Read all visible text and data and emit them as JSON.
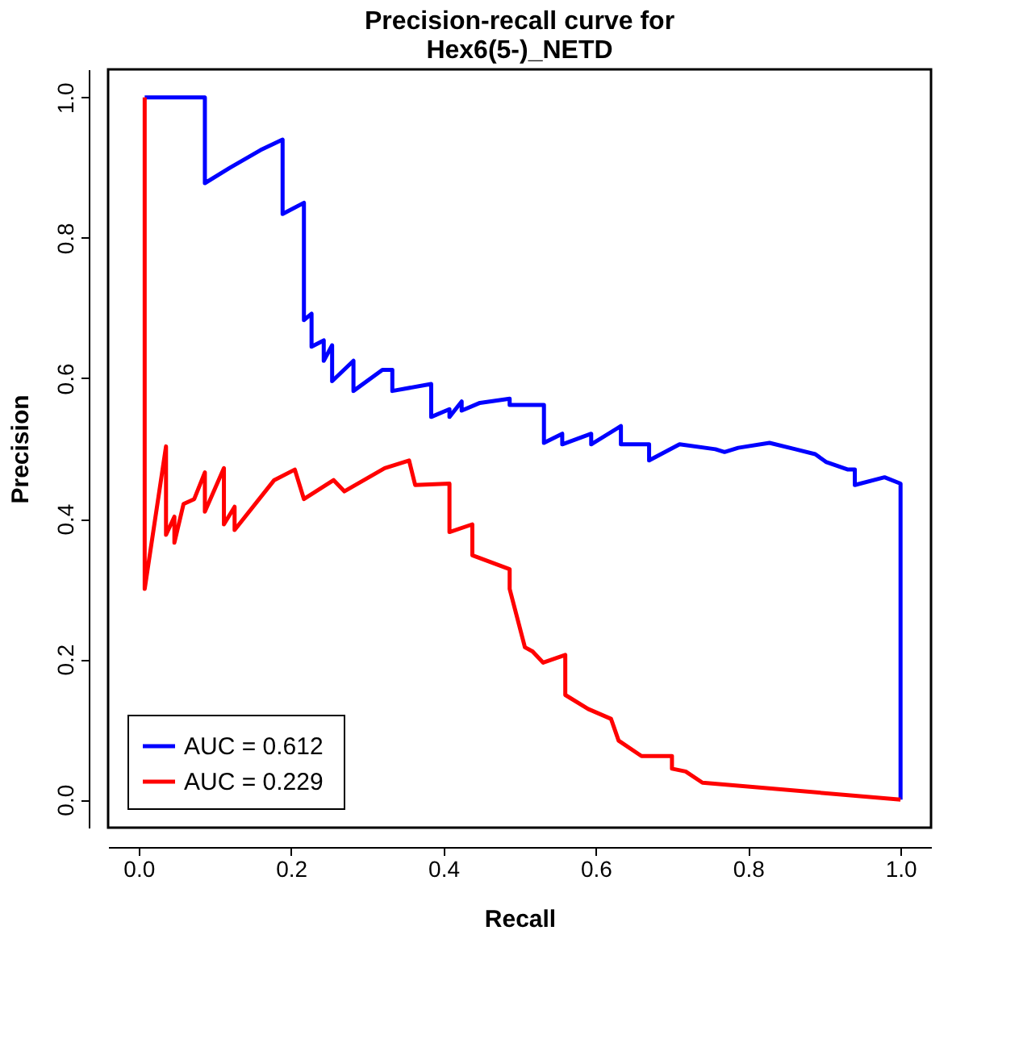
{
  "chart_data": {
    "type": "line",
    "title": "Precision-recall curve for\nHex6(5-)_NETD",
    "xlabel": "Recall",
    "ylabel": "Precision",
    "series": [
      {
        "name": "AUC =  0.612",
        "color": "#0000ff",
        "x": [
          0.008,
          0.087,
          0.087,
          0.12,
          0.16,
          0.189,
          0.189,
          0.217,
          0.217,
          0.227,
          0.227,
          0.243,
          0.243,
          0.254,
          0.254,
          0.282,
          0.282,
          0.32,
          0.333,
          0.333,
          0.384,
          0.384,
          0.408,
          0.408,
          0.424,
          0.424,
          0.448,
          0.487,
          0.487,
          0.507,
          0.532,
          0.532,
          0.556,
          0.556,
          0.594,
          0.594,
          0.633,
          0.633,
          0.67,
          0.67,
          0.682,
          0.71,
          0.757,
          0.769,
          0.787,
          0.828,
          0.862,
          0.888,
          0.902,
          0.931,
          0.94,
          0.94,
          0.979,
          1.0,
          1.0
        ],
        "values": [
          1.0,
          1.0,
          0.878,
          0.9,
          0.925,
          0.94,
          0.834,
          0.85,
          0.683,
          0.692,
          0.645,
          0.654,
          0.625,
          0.647,
          0.596,
          0.625,
          0.582,
          0.612,
          0.612,
          0.582,
          0.592,
          0.545,
          0.556,
          0.545,
          0.567,
          0.554,
          0.565,
          0.571,
          0.562,
          0.562,
          0.562,
          0.508,
          0.521,
          0.506,
          0.521,
          0.506,
          0.532,
          0.506,
          0.506,
          0.483,
          0.49,
          0.506,
          0.499,
          0.495,
          0.501,
          0.508,
          0.499,
          0.492,
          0.481,
          0.47,
          0.47,
          0.448,
          0.459,
          0.45,
          0.0
        ]
      },
      {
        "name": "AUC =  0.229",
        "color": "#ff0000",
        "x": [
          0.008,
          0.008,
          0.036,
          0.036,
          0.047,
          0.047,
          0.059,
          0.073,
          0.087,
          0.087,
          0.112,
          0.112,
          0.126,
          0.126,
          0.178,
          0.205,
          0.217,
          0.256,
          0.27,
          0.323,
          0.355,
          0.363,
          0.408,
          0.408,
          0.438,
          0.438,
          0.487,
          0.487,
          0.507,
          0.517,
          0.531,
          0.56,
          0.56,
          0.59,
          0.62,
          0.63,
          0.66,
          0.7,
          0.7,
          0.718,
          0.74,
          1.0
        ],
        "values": [
          1.0,
          0.3,
          0.503,
          0.377,
          0.403,
          0.366,
          0.421,
          0.428,
          0.466,
          0.41,
          0.472,
          0.392,
          0.417,
          0.384,
          0.455,
          0.47,
          0.428,
          0.455,
          0.439,
          0.472,
          0.483,
          0.448,
          0.45,
          0.381,
          0.392,
          0.348,
          0.328,
          0.3,
          0.217,
          0.211,
          0.195,
          0.206,
          0.149,
          0.129,
          0.115,
          0.084,
          0.062,
          0.062,
          0.044,
          0.04,
          0.024,
          0.0
        ]
      }
    ],
    "xlim": [
      -0.04,
      1.04
    ],
    "ylim": [
      -0.04,
      1.04
    ],
    "xticks": [
      {
        "value": 0,
        "label": "0.0"
      },
      {
        "value": 0.2,
        "label": "0.2"
      },
      {
        "value": 0.4,
        "label": "0.4"
      },
      {
        "value": 0.6,
        "label": "0.6"
      },
      {
        "value": 0.8,
        "label": "0.8"
      },
      {
        "value": 1,
        "label": "1.0"
      }
    ],
    "yticks": [
      {
        "value": 0,
        "label": "0.0"
      },
      {
        "value": 0.2,
        "label": "0.2"
      },
      {
        "value": 0.4,
        "label": "0.4"
      },
      {
        "value": 0.6,
        "label": "0.6"
      },
      {
        "value": 0.8,
        "label": "0.8"
      },
      {
        "value": 1,
        "label": "1.0"
      }
    ],
    "grid": false,
    "legend": "bottom left",
    "line_style": "solid",
    "marker": "none"
  }
}
